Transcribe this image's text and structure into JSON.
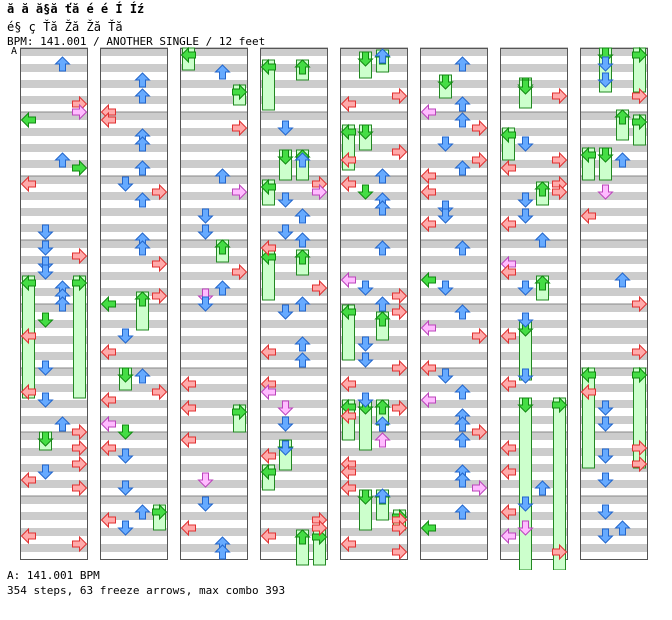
{
  "header": {
    "title": "ă ă ă§ă ťă é é Í Íź",
    "artist": "é§ ç Ťă Žă Žă Ťă",
    "info": "BPM: 141.001 / ANOTHER SINGLE / 12 feet"
  },
  "bpm_marker": "A",
  "footer": {
    "bpm_line": "A: 141.001 BPM",
    "stats": "354 steps, 63 freeze arrows, max combo 393"
  },
  "colors": {
    "stripe": "#cccccc",
    "background": "#ffffff",
    "red_arrow": "#ffaaaa",
    "red_outline": "#e03030",
    "blue_arrow": "#66aaff",
    "blue_outline": "#2266cc",
    "pink_arrow": "#ffbbff",
    "pink_outline": "#bb44bb",
    "green_arrow": "#44dd44",
    "green_outline": "#118811",
    "freeze_fill": "#ccffcc",
    "freeze_outline": "#228822"
  },
  "chart": {
    "columns": 8,
    "measures_per_column": 8,
    "lanes": [
      "left",
      "down",
      "up",
      "right"
    ],
    "lane_order_note": "left, down, up, right",
    "arrow_directions": [
      "left",
      "down",
      "up",
      "right"
    ]
  }
}
